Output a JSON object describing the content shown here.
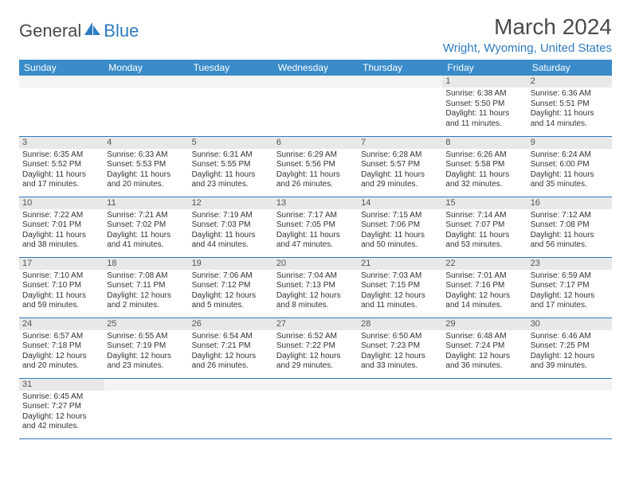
{
  "brand": {
    "part1": "General",
    "part2": "Blue"
  },
  "title": "March 2024",
  "location": "Wright, Wyoming, United States",
  "colors": {
    "header_bg": "#3a8bc9",
    "header_text": "#ffffff",
    "accent": "#2d7bc0",
    "daynum_bg": "#e8e8e8",
    "text": "#333333"
  },
  "day_headers": [
    "Sunday",
    "Monday",
    "Tuesday",
    "Wednesday",
    "Thursday",
    "Friday",
    "Saturday"
  ],
  "weeks": [
    [
      {
        "n": "",
        "sr": "",
        "ss": "",
        "dl": ""
      },
      {
        "n": "",
        "sr": "",
        "ss": "",
        "dl": ""
      },
      {
        "n": "",
        "sr": "",
        "ss": "",
        "dl": ""
      },
      {
        "n": "",
        "sr": "",
        "ss": "",
        "dl": ""
      },
      {
        "n": "",
        "sr": "",
        "ss": "",
        "dl": ""
      },
      {
        "n": "1",
        "sr": "Sunrise: 6:38 AM",
        "ss": "Sunset: 5:50 PM",
        "dl": "Daylight: 11 hours and 11 minutes."
      },
      {
        "n": "2",
        "sr": "Sunrise: 6:36 AM",
        "ss": "Sunset: 5:51 PM",
        "dl": "Daylight: 11 hours and 14 minutes."
      }
    ],
    [
      {
        "n": "3",
        "sr": "Sunrise: 6:35 AM",
        "ss": "Sunset: 5:52 PM",
        "dl": "Daylight: 11 hours and 17 minutes."
      },
      {
        "n": "4",
        "sr": "Sunrise: 6:33 AM",
        "ss": "Sunset: 5:53 PM",
        "dl": "Daylight: 11 hours and 20 minutes."
      },
      {
        "n": "5",
        "sr": "Sunrise: 6:31 AM",
        "ss": "Sunset: 5:55 PM",
        "dl": "Daylight: 11 hours and 23 minutes."
      },
      {
        "n": "6",
        "sr": "Sunrise: 6:29 AM",
        "ss": "Sunset: 5:56 PM",
        "dl": "Daylight: 11 hours and 26 minutes."
      },
      {
        "n": "7",
        "sr": "Sunrise: 6:28 AM",
        "ss": "Sunset: 5:57 PM",
        "dl": "Daylight: 11 hours and 29 minutes."
      },
      {
        "n": "8",
        "sr": "Sunrise: 6:26 AM",
        "ss": "Sunset: 5:58 PM",
        "dl": "Daylight: 11 hours and 32 minutes."
      },
      {
        "n": "9",
        "sr": "Sunrise: 6:24 AM",
        "ss": "Sunset: 6:00 PM",
        "dl": "Daylight: 11 hours and 35 minutes."
      }
    ],
    [
      {
        "n": "10",
        "sr": "Sunrise: 7:22 AM",
        "ss": "Sunset: 7:01 PM",
        "dl": "Daylight: 11 hours and 38 minutes."
      },
      {
        "n": "11",
        "sr": "Sunrise: 7:21 AM",
        "ss": "Sunset: 7:02 PM",
        "dl": "Daylight: 11 hours and 41 minutes."
      },
      {
        "n": "12",
        "sr": "Sunrise: 7:19 AM",
        "ss": "Sunset: 7:03 PM",
        "dl": "Daylight: 11 hours and 44 minutes."
      },
      {
        "n": "13",
        "sr": "Sunrise: 7:17 AM",
        "ss": "Sunset: 7:05 PM",
        "dl": "Daylight: 11 hours and 47 minutes."
      },
      {
        "n": "14",
        "sr": "Sunrise: 7:15 AM",
        "ss": "Sunset: 7:06 PM",
        "dl": "Daylight: 11 hours and 50 minutes."
      },
      {
        "n": "15",
        "sr": "Sunrise: 7:14 AM",
        "ss": "Sunset: 7:07 PM",
        "dl": "Daylight: 11 hours and 53 minutes."
      },
      {
        "n": "16",
        "sr": "Sunrise: 7:12 AM",
        "ss": "Sunset: 7:08 PM",
        "dl": "Daylight: 11 hours and 56 minutes."
      }
    ],
    [
      {
        "n": "17",
        "sr": "Sunrise: 7:10 AM",
        "ss": "Sunset: 7:10 PM",
        "dl": "Daylight: 11 hours and 59 minutes."
      },
      {
        "n": "18",
        "sr": "Sunrise: 7:08 AM",
        "ss": "Sunset: 7:11 PM",
        "dl": "Daylight: 12 hours and 2 minutes."
      },
      {
        "n": "19",
        "sr": "Sunrise: 7:06 AM",
        "ss": "Sunset: 7:12 PM",
        "dl": "Daylight: 12 hours and 5 minutes."
      },
      {
        "n": "20",
        "sr": "Sunrise: 7:04 AM",
        "ss": "Sunset: 7:13 PM",
        "dl": "Daylight: 12 hours and 8 minutes."
      },
      {
        "n": "21",
        "sr": "Sunrise: 7:03 AM",
        "ss": "Sunset: 7:15 PM",
        "dl": "Daylight: 12 hours and 11 minutes."
      },
      {
        "n": "22",
        "sr": "Sunrise: 7:01 AM",
        "ss": "Sunset: 7:16 PM",
        "dl": "Daylight: 12 hours and 14 minutes."
      },
      {
        "n": "23",
        "sr": "Sunrise: 6:59 AM",
        "ss": "Sunset: 7:17 PM",
        "dl": "Daylight: 12 hours and 17 minutes."
      }
    ],
    [
      {
        "n": "24",
        "sr": "Sunrise: 6:57 AM",
        "ss": "Sunset: 7:18 PM",
        "dl": "Daylight: 12 hours and 20 minutes."
      },
      {
        "n": "25",
        "sr": "Sunrise: 6:55 AM",
        "ss": "Sunset: 7:19 PM",
        "dl": "Daylight: 12 hours and 23 minutes."
      },
      {
        "n": "26",
        "sr": "Sunrise: 6:54 AM",
        "ss": "Sunset: 7:21 PM",
        "dl": "Daylight: 12 hours and 26 minutes."
      },
      {
        "n": "27",
        "sr": "Sunrise: 6:52 AM",
        "ss": "Sunset: 7:22 PM",
        "dl": "Daylight: 12 hours and 29 minutes."
      },
      {
        "n": "28",
        "sr": "Sunrise: 6:50 AM",
        "ss": "Sunset: 7:23 PM",
        "dl": "Daylight: 12 hours and 33 minutes."
      },
      {
        "n": "29",
        "sr": "Sunrise: 6:48 AM",
        "ss": "Sunset: 7:24 PM",
        "dl": "Daylight: 12 hours and 36 minutes."
      },
      {
        "n": "30",
        "sr": "Sunrise: 6:46 AM",
        "ss": "Sunset: 7:25 PM",
        "dl": "Daylight: 12 hours and 39 minutes."
      }
    ],
    [
      {
        "n": "31",
        "sr": "Sunrise: 6:45 AM",
        "ss": "Sunset: 7:27 PM",
        "dl": "Daylight: 12 hours and 42 minutes."
      },
      {
        "n": "",
        "sr": "",
        "ss": "",
        "dl": ""
      },
      {
        "n": "",
        "sr": "",
        "ss": "",
        "dl": ""
      },
      {
        "n": "",
        "sr": "",
        "ss": "",
        "dl": ""
      },
      {
        "n": "",
        "sr": "",
        "ss": "",
        "dl": ""
      },
      {
        "n": "",
        "sr": "",
        "ss": "",
        "dl": ""
      },
      {
        "n": "",
        "sr": "",
        "ss": "",
        "dl": ""
      }
    ]
  ]
}
